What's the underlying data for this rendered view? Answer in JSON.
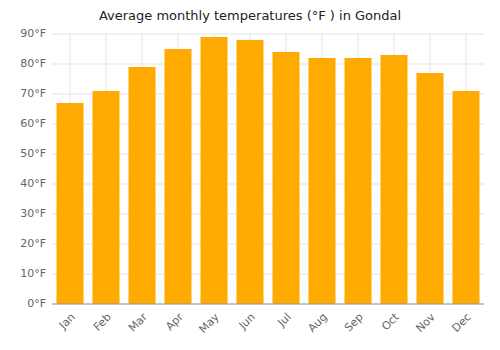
{
  "chart_data": {
    "type": "bar",
    "title": "Average monthly temperatures (°F ) in Gondal",
    "categories": [
      "Jan",
      "Feb",
      "Mar",
      "Apr",
      "May",
      "Jun",
      "Jul",
      "Aug",
      "Sep",
      "Oct",
      "Nov",
      "Dec"
    ],
    "values": [
      67,
      71,
      79,
      85,
      89,
      88,
      84,
      82,
      82,
      83,
      77,
      71
    ],
    "color": "#FFAA00",
    "ylim": [
      0,
      90
    ],
    "yticks": [
      {
        "value": 0,
        "label": "0°F"
      },
      {
        "value": 10,
        "label": "10°F"
      },
      {
        "value": 20,
        "label": "20°F"
      },
      {
        "value": 30,
        "label": "30°F"
      },
      {
        "value": 40,
        "label": "40°F"
      },
      {
        "value": 50,
        "label": "50°F"
      },
      {
        "value": 60,
        "label": "60°F"
      },
      {
        "value": 70,
        "label": "70°F"
      },
      {
        "value": 80,
        "label": "80°F"
      },
      {
        "value": 90,
        "label": "90°F"
      }
    ],
    "grid": true
  }
}
